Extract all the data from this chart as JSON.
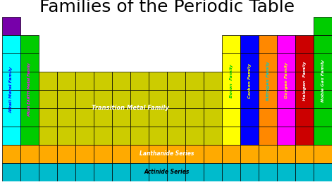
{
  "title": "Families of the Periodic Table",
  "title_fontsize": 18,
  "background": "#ffffff",
  "alkali_color": "#00ffff",
  "alkali_earth_color": "#00cc00",
  "transition_color": "#cccc00",
  "boron_color": "#ffff00",
  "carbon_color": "#0000ff",
  "nitrogen_color": "#ff8800",
  "oxygen_color": "#ff00ff",
  "halogen_color": "#cc0000",
  "noble_color": "#00cc00",
  "purple_color": "#7700aa",
  "lanthanide_color": "#ffaa00",
  "actinide_color": "#00bbcc",
  "edge_color": "#000000",
  "grid_lw": 0.5,
  "total_cols": 18,
  "total_rows": 9,
  "families": [
    {
      "label": "Alkali Metal Family",
      "col": 0,
      "row_s": 1,
      "row_e": 6,
      "text_color": "#0000ff",
      "fontsize": 4.5
    },
    {
      "label": "Alkali EARTH Metal Family",
      "col": 1,
      "row_s": 1,
      "row_e": 6,
      "text_color": "#ff00ff",
      "fontsize": 3.8
    },
    {
      "label": "Boron  Family",
      "col": 12,
      "row_s": 0,
      "row_e": 6,
      "text_color": "#00cc00",
      "fontsize": 4.5
    },
    {
      "label": "Carbon Family",
      "col": 13,
      "row_s": 0,
      "row_e": 6,
      "text_color": "#ffff00",
      "fontsize": 4.5
    },
    {
      "label": "Nitrogen Family",
      "col": 14,
      "row_s": 0,
      "row_e": 6,
      "text_color": "#00cccc",
      "fontsize": 4.5
    },
    {
      "label": "Oxygen Family",
      "col": 15,
      "row_s": 0,
      "row_e": 6,
      "text_color": "#ffff00",
      "fontsize": 4.5
    },
    {
      "label": "Halogen  Family",
      "col": 16,
      "row_s": 0,
      "row_e": 6,
      "text_color": "#ffffff",
      "fontsize": 4.5
    },
    {
      "label": "Noble Gas Family",
      "col": 17,
      "row_s": 0,
      "row_e": 6,
      "text_color": "#ffffff",
      "fontsize": 4.5
    }
  ],
  "transition_label": {
    "label": "Transition Metal Family",
    "col_s": 2,
    "col_e": 11,
    "row_s": 3,
    "row_e": 6,
    "text_color": "#ffffff",
    "fontsize": 6
  },
  "lanthanide_label": {
    "label": "Lanthanide Series",
    "row": 7,
    "text_color": "#ffffff",
    "fontsize": 5.5
  },
  "actinide_label": {
    "label": "Actinide Series",
    "row": 8,
    "text_color": "#000000",
    "fontsize": 5.5
  }
}
